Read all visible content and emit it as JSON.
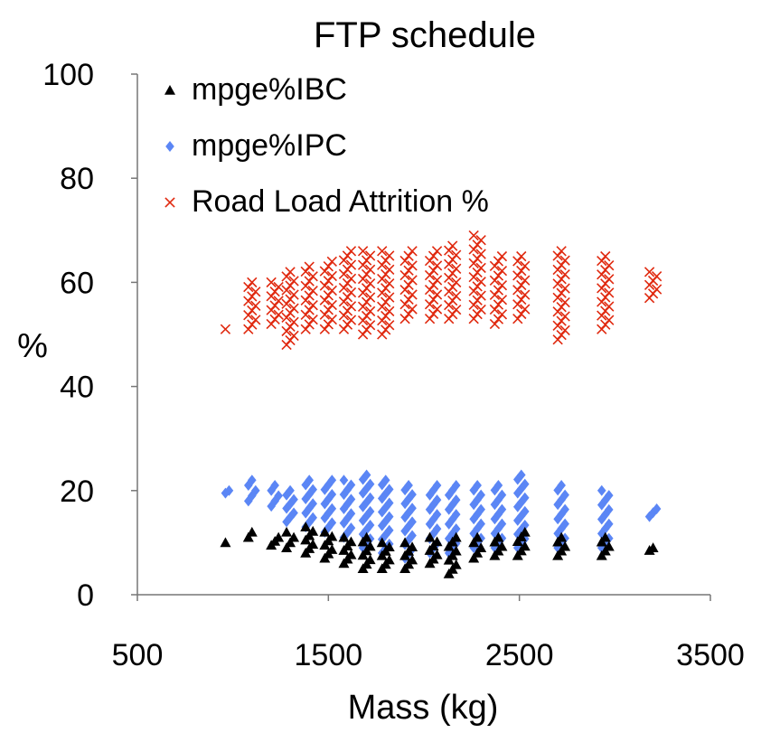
{
  "chart_data": {
    "type": "scatter",
    "title": "FTP schedule",
    "xlabel": "Mass (kg)",
    "ylabel": "%",
    "xlim": [
      500,
      3500
    ],
    "ylim": [
      0,
      100
    ],
    "xticks": [
      "500",
      "1500",
      "2500",
      "3500"
    ],
    "yticks": [
      "0",
      "20",
      "40",
      "60",
      "80",
      "100"
    ],
    "grid": false,
    "legend_position": "top-left",
    "series": [
      {
        "name": "mpge%IBC",
        "marker": "triangle",
        "color": "#000000",
        "columns": [
          {
            "x": 980,
            "ymin": 10,
            "ymax": 10
          },
          {
            "x": 1100,
            "ymin": 11,
            "ymax": 12
          },
          {
            "x": 1220,
            "ymin": 9.5,
            "ymax": 11
          },
          {
            "x": 1300,
            "ymin": 9,
            "ymax": 12
          },
          {
            "x": 1400,
            "ymin": 8,
            "ymax": 13
          },
          {
            "x": 1500,
            "ymin": 7,
            "ymax": 12
          },
          {
            "x": 1600,
            "ymin": 6,
            "ymax": 11
          },
          {
            "x": 1700,
            "ymin": 5,
            "ymax": 11
          },
          {
            "x": 1800,
            "ymin": 5,
            "ymax": 10
          },
          {
            "x": 1920,
            "ymin": 5,
            "ymax": 10
          },
          {
            "x": 2050,
            "ymin": 6,
            "ymax": 11
          },
          {
            "x": 2150,
            "ymin": 4,
            "ymax": 11
          },
          {
            "x": 2280,
            "ymin": 7,
            "ymax": 11
          },
          {
            "x": 2390,
            "ymin": 7.5,
            "ymax": 11
          },
          {
            "x": 2510,
            "ymin": 7.5,
            "ymax": 12
          },
          {
            "x": 2720,
            "ymin": 7.5,
            "ymax": 11
          },
          {
            "x": 2950,
            "ymin": 7.5,
            "ymax": 11
          },
          {
            "x": 3200,
            "ymin": 8.5,
            "ymax": 9
          }
        ]
      },
      {
        "name": "mpge%IPC",
        "marker": "diamond",
        "color": "#5b86f5",
        "columns": [
          {
            "x": 980,
            "ymin": 19.5,
            "ymax": 20
          },
          {
            "x": 1100,
            "ymin": 18,
            "ymax": 22
          },
          {
            "x": 1220,
            "ymin": 17,
            "ymax": 21
          },
          {
            "x": 1300,
            "ymin": 14,
            "ymax": 20
          },
          {
            "x": 1400,
            "ymin": 13,
            "ymax": 22
          },
          {
            "x": 1500,
            "ymin": 12,
            "ymax": 22
          },
          {
            "x": 1600,
            "ymin": 11,
            "ymax": 22
          },
          {
            "x": 1700,
            "ymin": 9,
            "ymax": 23
          },
          {
            "x": 1800,
            "ymin": 8,
            "ymax": 22
          },
          {
            "x": 1920,
            "ymin": 7,
            "ymax": 21
          },
          {
            "x": 2050,
            "ymin": 8,
            "ymax": 21
          },
          {
            "x": 2150,
            "ymin": 8,
            "ymax": 21
          },
          {
            "x": 2280,
            "ymin": 9,
            "ymax": 21
          },
          {
            "x": 2390,
            "ymin": 9,
            "ymax": 21
          },
          {
            "x": 2510,
            "ymin": 9,
            "ymax": 23
          },
          {
            "x": 2720,
            "ymin": 9,
            "ymax": 21
          },
          {
            "x": 2950,
            "ymin": 9,
            "ymax": 20
          },
          {
            "x": 3200,
            "ymin": 15,
            "ymax": 16.5
          }
        ]
      },
      {
        "name": "Road Load Attrition %",
        "marker": "x",
        "color": "#e0290f",
        "columns": [
          {
            "x": 980,
            "ymin": 51,
            "ymax": 51
          },
          {
            "x": 1100,
            "ymin": 51,
            "ymax": 60
          },
          {
            "x": 1220,
            "ymin": 52,
            "ymax": 60
          },
          {
            "x": 1300,
            "ymin": 48,
            "ymax": 62
          },
          {
            "x": 1400,
            "ymin": 51,
            "ymax": 63
          },
          {
            "x": 1500,
            "ymin": 51,
            "ymax": 64
          },
          {
            "x": 1600,
            "ymin": 51,
            "ymax": 66
          },
          {
            "x": 1700,
            "ymin": 50,
            "ymax": 66
          },
          {
            "x": 1800,
            "ymin": 50,
            "ymax": 66
          },
          {
            "x": 1920,
            "ymin": 53,
            "ymax": 66
          },
          {
            "x": 2050,
            "ymin": 53,
            "ymax": 66
          },
          {
            "x": 2150,
            "ymin": 53,
            "ymax": 67
          },
          {
            "x": 2280,
            "ymin": 53,
            "ymax": 69
          },
          {
            "x": 2390,
            "ymin": 52,
            "ymax": 65
          },
          {
            "x": 2510,
            "ymin": 53,
            "ymax": 65
          },
          {
            "x": 2720,
            "ymin": 49,
            "ymax": 66
          },
          {
            "x": 2950,
            "ymin": 51,
            "ymax": 65
          },
          {
            "x": 3200,
            "ymin": 57,
            "ymax": 62
          }
        ]
      }
    ]
  }
}
